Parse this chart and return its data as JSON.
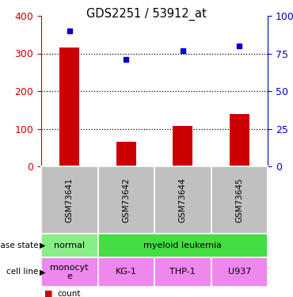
{
  "title": "GDS2251 / 53912_at",
  "samples": [
    "GSM73641",
    "GSM73642",
    "GSM73644",
    "GSM73645"
  ],
  "counts": [
    315,
    65,
    108,
    138
  ],
  "percentiles": [
    90,
    71,
    77,
    80
  ],
  "ylim_left": [
    0,
    400
  ],
  "ylim_right": [
    0,
    100
  ],
  "yticks_left": [
    0,
    100,
    200,
    300,
    400
  ],
  "yticks_right": [
    0,
    25,
    50,
    75,
    100
  ],
  "yticklabels_right": [
    "0",
    "25",
    "50",
    "75",
    "100%"
  ],
  "bar_color": "#cc0000",
  "dot_color": "#0000cc",
  "disease_states": [
    {
      "label": "normal",
      "start": 0,
      "end": 1,
      "color": "#88ee88"
    },
    {
      "label": "myeloid leukemia",
      "start": 1,
      "end": 4,
      "color": "#44dd44"
    }
  ],
  "cell_lines": [
    {
      "label": "monocyt\ne",
      "start": 0,
      "end": 1,
      "color": "#ee88ee"
    },
    {
      "label": "KG-1",
      "start": 1,
      "end": 2,
      "color": "#ee88ee"
    },
    {
      "label": "THP-1",
      "start": 2,
      "end": 3,
      "color": "#ee88ee"
    },
    {
      "label": "U937",
      "start": 3,
      "end": 4,
      "color": "#ee88ee"
    }
  ],
  "sample_box_color": "#c0c0c0",
  "grid_dotted_at": [
    100,
    200,
    300
  ],
  "bar_width": 0.35,
  "marker_size": 5
}
